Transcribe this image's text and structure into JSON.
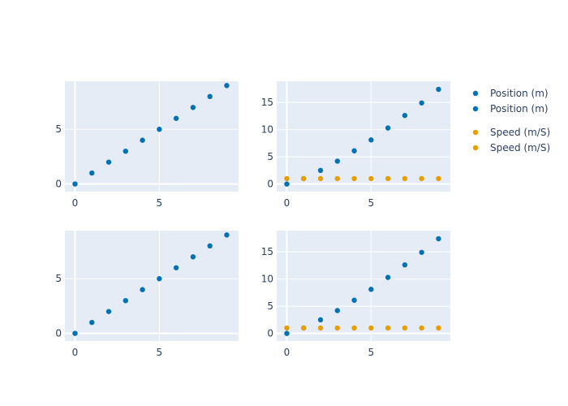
{
  "colors": {
    "position": "#0072B2",
    "speed": "#E69F00",
    "plot_bg": "#E5ECF6",
    "grid": "#ffffff",
    "text": "#2a3f5f"
  },
  "legend": {
    "placement": "top-right",
    "groups": [
      {
        "items": [
          {
            "label": "Position (m)",
            "series": "position"
          },
          {
            "label": "Position (m)",
            "series": "position"
          }
        ]
      },
      {
        "items": [
          {
            "label": "Speed (m/S)",
            "series": "speed"
          },
          {
            "label": "Speed (m/S)",
            "series": "speed"
          }
        ]
      }
    ]
  },
  "chart_data": [
    {
      "type": "scatter",
      "panel": "top-left",
      "title": "",
      "xlabel": "",
      "ylabel": "",
      "xlim": [
        -0.6,
        9.7
      ],
      "ylim": [
        -0.7,
        9.4
      ],
      "xticks": [
        0,
        5
      ],
      "yticks": [
        0,
        5
      ],
      "grid": true,
      "series": [
        {
          "key": "position",
          "x": [
            0,
            1,
            2,
            3,
            4,
            5,
            6,
            7,
            8,
            9
          ],
          "y": [
            0,
            1,
            2,
            3,
            4,
            5,
            6,
            7,
            8,
            9
          ]
        }
      ]
    },
    {
      "type": "scatter",
      "panel": "top-right",
      "title": "",
      "xlabel": "",
      "ylabel": "",
      "xlim": [
        -0.6,
        9.7
      ],
      "ylim": [
        -1.4,
        18.9
      ],
      "xticks": [
        0,
        5
      ],
      "yticks": [
        0,
        5,
        10,
        15
      ],
      "grid": true,
      "series": [
        {
          "key": "position",
          "x": [
            0,
            1,
            2,
            3,
            4,
            5,
            6,
            7,
            8,
            9
          ],
          "y": [
            0,
            1,
            2.5,
            4.2,
            6.1,
            8.1,
            10.3,
            12.6,
            14.9,
            17.4
          ]
        },
        {
          "key": "speed",
          "x": [
            0,
            1,
            2,
            3,
            4,
            5,
            6,
            7,
            8,
            9
          ],
          "y": [
            1,
            1,
            1,
            1,
            1,
            1,
            1,
            1,
            1,
            1
          ]
        }
      ]
    },
    {
      "type": "scatter",
      "panel": "bottom-left",
      "title": "",
      "xlabel": "",
      "ylabel": "",
      "xlim": [
        -0.6,
        9.7
      ],
      "ylim": [
        -0.7,
        9.4
      ],
      "xticks": [
        0,
        5
      ],
      "yticks": [
        0,
        5
      ],
      "grid": true,
      "series": [
        {
          "key": "position",
          "x": [
            0,
            1,
            2,
            3,
            4,
            5,
            6,
            7,
            8,
            9
          ],
          "y": [
            0,
            1,
            2,
            3,
            4,
            5,
            6,
            7,
            8,
            9
          ]
        }
      ]
    },
    {
      "type": "scatter",
      "panel": "bottom-right",
      "title": "",
      "xlabel": "",
      "ylabel": "",
      "xlim": [
        -0.6,
        9.7
      ],
      "ylim": [
        -1.4,
        18.9
      ],
      "xticks": [
        0,
        5
      ],
      "yticks": [
        0,
        5,
        10,
        15
      ],
      "grid": true,
      "series": [
        {
          "key": "position",
          "x": [
            0,
            1,
            2,
            3,
            4,
            5,
            6,
            7,
            8,
            9
          ],
          "y": [
            0,
            1,
            2.5,
            4.2,
            6.1,
            8.1,
            10.3,
            12.6,
            14.9,
            17.4
          ]
        },
        {
          "key": "speed",
          "x": [
            0,
            1,
            2,
            3,
            4,
            5,
            6,
            7,
            8,
            9
          ],
          "y": [
            1,
            1,
            1,
            1,
            1,
            1,
            1,
            1,
            1,
            1
          ]
        }
      ]
    }
  ]
}
